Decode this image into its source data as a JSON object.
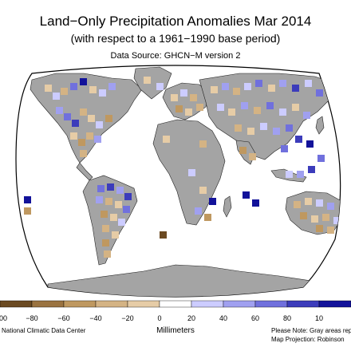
{
  "title": "Land−Only Precipitation Anomalies Mar 2014",
  "subtitle": "(with respect to a 1961−1990 base period)",
  "source": "Data Source: GHCN−M version 2",
  "legend": {
    "unit": "Millimeters",
    "ticks": [
      "−80",
      "−60",
      "−40",
      "−20",
      "0",
      "20",
      "40",
      "60",
      "80",
      "10"
    ],
    "left_edge_tick": "00",
    "colors": [
      "#6b4a22",
      "#9a7340",
      "#bf9860",
      "#d4b384",
      "#e6cca6",
      "#ffffff",
      "#ccccff",
      "#a0a0f0",
      "#7070dd",
      "#3c3cbb",
      "#12129a"
    ]
  },
  "footer": {
    "credit": "National Climatic Data Center",
    "note": "Please Note: Gray areas repres",
    "projection": "Map Projection: Robinson"
  },
  "map": {
    "ocean_color": "#ffffff",
    "land_nodata_color": "#a4a4a4"
  }
}
